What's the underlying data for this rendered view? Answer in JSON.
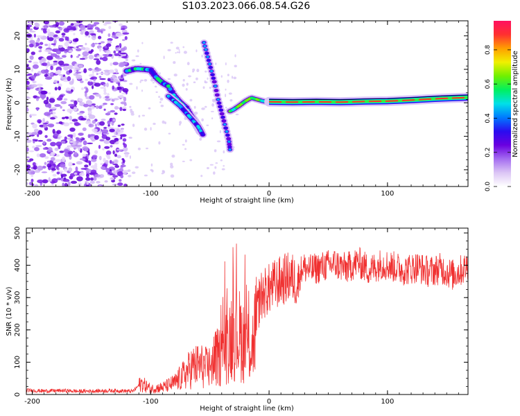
{
  "title": "S103.2023.066.08.54.G26",
  "chart_data": [
    {
      "type": "heatmap",
      "xlabel": "Height of straight line (km)",
      "ylabel": "Frequency (Hz)",
      "xlim": [
        -205,
        168
      ],
      "ylim": [
        -25,
        24.5
      ],
      "xticks": [
        -200,
        -100,
        0,
        100
      ],
      "yticks": [
        -20,
        -10,
        0,
        10,
        20
      ],
      "colorbar": {
        "label": "Normalized spectral amplitude",
        "range": [
          0.0,
          0.97
        ],
        "ticks": [
          0.0,
          0.2,
          0.4,
          0.6,
          0.8
        ],
        "colors": [
          "#ffffff",
          "#dcc6f5",
          "#a46cf0",
          "#6a00e0",
          "#2a0cf0",
          "#007bff",
          "#00e0e8",
          "#00f060",
          "#70f000",
          "#f0f000",
          "#ffa000",
          "#ff3030",
          "#ff1060"
        ]
      },
      "noise_region": {
        "x": [
          -205,
          -120
        ],
        "y": [
          -25,
          24.5
        ]
      },
      "ridge": {
        "x": [
          -120,
          -112,
          -105,
          -100,
          -95,
          -90,
          -85,
          -80,
          -75,
          -70,
          -66,
          -62,
          -58
        ],
        "y": [
          9.5,
          10.2,
          10.0,
          9.8,
          7.5,
          6.0,
          5.0,
          2.0,
          0.0,
          -1.5,
          -4.0,
          -6.0,
          -8.5
        ]
      },
      "ridge2": {
        "x": [
          -85,
          -80,
          -75,
          -70,
          -65,
          -60,
          -56
        ],
        "y": [
          2.0,
          0.5,
          -1.0,
          -3.0,
          -5.0,
          -7.0,
          -9.5
        ]
      },
      "ridge3": {
        "x": [
          -55,
          -52,
          -49,
          -46,
          -43,
          -40,
          -37,
          -34,
          -33
        ],
        "y": [
          18,
          14,
          10,
          6,
          1,
          -3,
          -7,
          -11,
          -14
        ]
      },
      "ridge4": {
        "x": [
          -33,
          -30,
          -25,
          -20,
          -15,
          -10,
          -5,
          0
        ],
        "y": [
          -2.5,
          -2.0,
          -0.8,
          0.5,
          1.5,
          1.0,
          0.5,
          0.2
        ]
      },
      "carrier": {
        "x": [
          0,
          20,
          40,
          60,
          80,
          100,
          120,
          140,
          160,
          168
        ],
        "y": [
          0.3,
          0.2,
          0.3,
          0.2,
          0.4,
          0.5,
          0.8,
          1.2,
          1.5,
          1.6
        ]
      }
    },
    {
      "type": "line",
      "xlabel": "Height of straight line (km)",
      "ylabel": "SNR (10 * v/v)",
      "xlim": [
        -205,
        168
      ],
      "ylim": [
        0,
        515
      ],
      "xticks": [
        -200,
        -100,
        0,
        100
      ],
      "yticks": [
        0,
        100,
        200,
        300,
        400,
        500
      ],
      "color": "#f03030",
      "x": [
        -205,
        -190,
        -175,
        -160,
        -145,
        -130,
        -115,
        -108,
        -100,
        -90,
        -80,
        -72,
        -65,
        -58,
        -52,
        -46,
        -40,
        -35,
        -30,
        -27,
        -24,
        -20,
        -14,
        -8,
        -2,
        5,
        12,
        18,
        24,
        28,
        35,
        45,
        55,
        65,
        75,
        85,
        95,
        105,
        115,
        125,
        135,
        145,
        155,
        165,
        168
      ],
      "y": [
        13,
        11,
        12,
        10,
        11,
        12,
        10,
        35,
        18,
        22,
        35,
        60,
        85,
        90,
        80,
        110,
        120,
        160,
        200,
        190,
        180,
        160,
        150,
        300,
        320,
        340,
        355,
        365,
        345,
        395,
        385,
        395,
        405,
        390,
        410,
        385,
        405,
        395,
        385,
        395,
        380,
        390,
        370,
        390,
        400
      ]
    }
  ]
}
